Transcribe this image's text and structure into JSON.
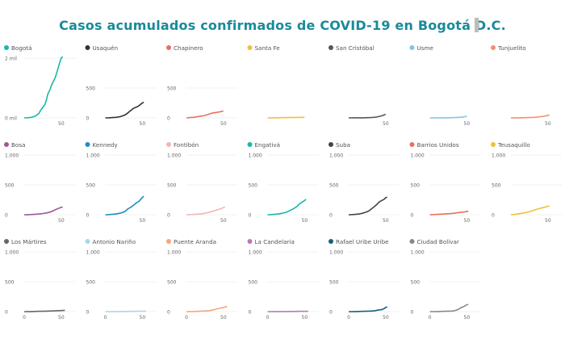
{
  "title": "Casos acumulados confirmados de COVID-19 en Bogotá D.C.",
  "chart_data": [
    {
      "type": "line",
      "title": "Bogotá",
      "color": "#17b8a6",
      "ylim": [
        0,
        2000
      ],
      "yticks": [
        0,
        2000
      ],
      "ytick_labels": [
        "0 mil",
        "2 mil"
      ],
      "xticks": [
        50
      ],
      "xtick_labels": [
        "50"
      ],
      "x": [
        0,
        5,
        10,
        15,
        20,
        22,
        25,
        28,
        30,
        32,
        35,
        37,
        40,
        42,
        45,
        48,
        50,
        52
      ],
      "values": [
        0,
        5,
        20,
        60,
        150,
        250,
        350,
        450,
        600,
        800,
        950,
        1100,
        1250,
        1350,
        1600,
        1850,
        2000,
        2050
      ]
    },
    {
      "type": "line",
      "title": "Usaquén",
      "color": "#333333",
      "ylim": [
        0,
        1000
      ],
      "yticks": [
        0,
        500
      ],
      "ytick_labels": [
        "0",
        "500"
      ],
      "xticks": [
        50
      ],
      "xtick_labels": [
        "50"
      ],
      "x": [
        0,
        5,
        10,
        15,
        20,
        25,
        28,
        30,
        32,
        35,
        38,
        40,
        42,
        45,
        48,
        50,
        52
      ],
      "values": [
        0,
        2,
        5,
        10,
        20,
        40,
        60,
        80,
        100,
        130,
        160,
        170,
        180,
        200,
        230,
        250,
        260
      ]
    },
    {
      "type": "line",
      "title": "Chapinero",
      "color": "#e8705e",
      "ylim": [
        0,
        1000
      ],
      "yticks": [
        0,
        500
      ],
      "ytick_labels": [
        "0",
        "500"
      ],
      "xticks": [
        50
      ],
      "xtick_labels": [
        "50"
      ],
      "x": [
        0,
        5,
        10,
        15,
        20,
        25,
        30,
        32,
        35,
        38,
        40,
        42,
        45,
        48,
        50
      ],
      "values": [
        0,
        5,
        10,
        20,
        30,
        40,
        60,
        70,
        80,
        85,
        90,
        95,
        100,
        110,
        115
      ]
    },
    {
      "type": "line",
      "title": "Santa Fe",
      "color": "#f2c037",
      "ylim": [
        0,
        1000
      ],
      "yticks": [],
      "ytick_labels": [],
      "xticks": [],
      "xtick_labels": [],
      "x": [
        0,
        10,
        20,
        30,
        40,
        50
      ],
      "values": [
        0,
        2,
        4,
        6,
        8,
        10
      ]
    },
    {
      "type": "line",
      "title": "San Cristóbal",
      "color": "#555555",
      "ylim": [
        0,
        1000
      ],
      "yticks": [],
      "ytick_labels": [],
      "xticks": [
        50
      ],
      "xtick_labels": [
        "50"
      ],
      "x": [
        0,
        10,
        20,
        30,
        35,
        40,
        45,
        48,
        50
      ],
      "values": [
        0,
        1,
        2,
        5,
        10,
        20,
        35,
        50,
        60
      ]
    },
    {
      "type": "line",
      "title": "Usme",
      "color": "#7ec8e3",
      "ylim": [
        0,
        1000
      ],
      "yticks": [],
      "ytick_labels": [],
      "xticks": [
        50
      ],
      "xtick_labels": [
        "50"
      ],
      "x": [
        0,
        10,
        20,
        30,
        35,
        40,
        45,
        48,
        50
      ],
      "values": [
        0,
        1,
        2,
        4,
        6,
        10,
        15,
        22,
        30
      ]
    },
    {
      "type": "line",
      "title": "Tunjuelito",
      "color": "#f4906a",
      "ylim": [
        0,
        1000
      ],
      "yticks": [],
      "ytick_labels": [],
      "xticks": [
        50
      ],
      "xtick_labels": [
        "50"
      ],
      "x": [
        0,
        10,
        20,
        30,
        35,
        40,
        45,
        48,
        50,
        52
      ],
      "values": [
        0,
        2,
        4,
        8,
        12,
        20,
        28,
        35,
        42,
        48
      ]
    },
    {
      "type": "line",
      "title": "Bosa",
      "color": "#a0579a",
      "ylim": [
        0,
        1000
      ],
      "yticks": [
        0,
        500,
        1000
      ],
      "ytick_labels": [
        "0",
        "500",
        "1.000"
      ],
      "xticks": [
        50
      ],
      "xtick_labels": [
        "50"
      ],
      "x": [
        0,
        5,
        10,
        15,
        20,
        25,
        30,
        35,
        40,
        42,
        45,
        48,
        50,
        52
      ],
      "values": [
        0,
        2,
        4,
        8,
        12,
        20,
        30,
        45,
        70,
        85,
        100,
        115,
        125,
        130
      ]
    },
    {
      "type": "line",
      "title": "Kennedy",
      "color": "#1f8dc1",
      "ylim": [
        0,
        1000
      ],
      "yticks": [
        0,
        500,
        1000
      ],
      "ytick_labels": [
        "0",
        "500",
        "1.000"
      ],
      "xticks": [
        50
      ],
      "xtick_labels": [
        "50"
      ],
      "x": [
        0,
        5,
        10,
        15,
        20,
        25,
        28,
        30,
        32,
        35,
        38,
        40,
        42,
        45,
        48,
        50,
        52
      ],
      "values": [
        0,
        3,
        8,
        15,
        25,
        45,
        70,
        95,
        110,
        130,
        160,
        180,
        200,
        220,
        260,
        290,
        310
      ]
    },
    {
      "type": "line",
      "title": "Fontibón",
      "color": "#f2b5b5",
      "ylim": [
        0,
        1000
      ],
      "yticks": [
        0,
        500,
        1000
      ],
      "ytick_labels": [
        "0",
        "500",
        "1.000"
      ],
      "xticks": [
        50
      ],
      "xtick_labels": [
        "50"
      ],
      "x": [
        0,
        10,
        20,
        25,
        30,
        35,
        40,
        45,
        48,
        50,
        52
      ],
      "values": [
        0,
        5,
        15,
        25,
        40,
        55,
        75,
        95,
        110,
        120,
        130
      ]
    },
    {
      "type": "line",
      "title": "Engativá",
      "color": "#17b8a6",
      "ylim": [
        0,
        1000
      ],
      "yticks": [
        0,
        500,
        1000
      ],
      "ytick_labels": [
        "0",
        "500",
        "1.000"
      ],
      "xticks": [
        50
      ],
      "xtick_labels": [
        "50"
      ],
      "x": [
        0,
        5,
        10,
        15,
        20,
        25,
        30,
        35,
        40,
        42,
        45,
        48,
        50,
        52
      ],
      "values": [
        0,
        3,
        8,
        15,
        25,
        40,
        70,
        100,
        140,
        170,
        200,
        220,
        240,
        255
      ]
    },
    {
      "type": "line",
      "title": "Suba",
      "color": "#444444",
      "ylim": [
        0,
        1000
      ],
      "yticks": [
        0,
        500,
        1000
      ],
      "ytick_labels": [
        "0",
        "500",
        "1.000"
      ],
      "xticks": [
        50
      ],
      "xtick_labels": [
        "50"
      ],
      "x": [
        0,
        5,
        10,
        15,
        20,
        25,
        28,
        30,
        32,
        35,
        38,
        40,
        42,
        45,
        48,
        50,
        52
      ],
      "values": [
        0,
        3,
        8,
        15,
        30,
        50,
        70,
        90,
        110,
        140,
        170,
        200,
        220,
        240,
        260,
        285,
        295
      ]
    },
    {
      "type": "line",
      "title": "Barrios Unidos",
      "color": "#e8705e",
      "ylim": [
        0,
        1000
      ],
      "yticks": [
        0,
        500,
        1000
      ],
      "ytick_labels": [
        "0",
        "500",
        "1.000"
      ],
      "xticks": [
        50
      ],
      "xtick_labels": [
        "50"
      ],
      "x": [
        0,
        10,
        20,
        30,
        35,
        40,
        45,
        48,
        50,
        52
      ],
      "values": [
        0,
        5,
        12,
        22,
        30,
        38,
        45,
        50,
        55,
        60
      ]
    },
    {
      "type": "line",
      "title": "Teusaquillo",
      "color": "#f2c037",
      "ylim": [
        0,
        1000
      ],
      "yticks": [
        0,
        500,
        1000
      ],
      "ytick_labels": [
        "0",
        "500",
        "1.000"
      ],
      "xticks": [
        50
      ],
      "xtick_labels": [
        "50"
      ],
      "x": [
        0,
        5,
        10,
        15,
        20,
        25,
        30,
        35,
        40,
        45,
        48,
        50,
        52
      ],
      "values": [
        0,
        5,
        15,
        25,
        35,
        50,
        70,
        90,
        110,
        125,
        135,
        140,
        145
      ]
    },
    {
      "type": "line",
      "title": "Los Mártires",
      "color": "#666666",
      "ylim": [
        0,
        1000
      ],
      "yticks": [
        0,
        500,
        1000
      ],
      "ytick_labels": [
        "0",
        "500",
        "1.000"
      ],
      "xticks": [
        0,
        50
      ],
      "xtick_labels": [
        "0",
        "50"
      ],
      "x": [
        0,
        10,
        20,
        30,
        40,
        50,
        55
      ],
      "values": [
        0,
        2,
        5,
        8,
        12,
        18,
        22
      ]
    },
    {
      "type": "line",
      "title": "Antonio Nariño",
      "color": "#a8d8ea",
      "ylim": [
        0,
        1000
      ],
      "yticks": [
        0,
        500,
        1000
      ],
      "ytick_labels": [
        "0",
        "500",
        "1.000"
      ],
      "xticks": [
        0,
        50
      ],
      "xtick_labels": [
        "0",
        "50"
      ],
      "x": [
        0,
        10,
        20,
        30,
        40,
        50,
        55
      ],
      "values": [
        0,
        1,
        2,
        3,
        5,
        8,
        10
      ]
    },
    {
      "type": "line",
      "title": "Puente Aranda",
      "color": "#f4a57c",
      "ylim": [
        0,
        1000
      ],
      "yticks": [
        0,
        500,
        1000
      ],
      "ytick_labels": [
        "0",
        "500",
        "1.000"
      ],
      "xticks": [
        0,
        50
      ],
      "xtick_labels": [
        "0",
        "50"
      ],
      "x": [
        0,
        10,
        20,
        30,
        35,
        40,
        45,
        50,
        55
      ],
      "values": [
        0,
        3,
        8,
        15,
        25,
        40,
        55,
        70,
        85
      ]
    },
    {
      "type": "line",
      "title": "La Candelaria",
      "color": "#b77ab0",
      "ylim": [
        0,
        1000
      ],
      "yticks": [
        0,
        500,
        1000
      ],
      "ytick_labels": [
        "0",
        "500",
        "1.000"
      ],
      "xticks": [
        0,
        50
      ],
      "xtick_labels": [
        "0",
        "50"
      ],
      "x": [
        0,
        10,
        20,
        30,
        40,
        50,
        55
      ],
      "values": [
        0,
        1,
        2,
        3,
        4,
        5,
        6
      ]
    },
    {
      "type": "line",
      "title": "Rafael Uribe Uribe",
      "color": "#1a5e7a",
      "ylim": [
        0,
        1000
      ],
      "yticks": [
        0,
        500,
        1000
      ],
      "ytick_labels": [
        "0",
        "500",
        "1.000"
      ],
      "xticks": [
        0,
        50
      ],
      "xtick_labels": [
        "0",
        "50"
      ],
      "x": [
        0,
        10,
        20,
        30,
        35,
        40,
        45,
        48,
        50,
        52
      ],
      "values": [
        0,
        2,
        5,
        10,
        15,
        25,
        35,
        50,
        70,
        80
      ]
    },
    {
      "type": "line",
      "title": "Ciudad Bolívar",
      "color": "#888888",
      "ylim": [
        0,
        1000
      ],
      "yticks": [
        0,
        500,
        1000
      ],
      "ytick_labels": [
        "0",
        "500",
        "1.000"
      ],
      "xticks": [
        0,
        50
      ],
      "xtick_labels": [
        "0",
        "50"
      ],
      "x": [
        0,
        10,
        20,
        30,
        35,
        38,
        40,
        42,
        45,
        48,
        50,
        52
      ],
      "values": [
        0,
        2,
        5,
        10,
        20,
        35,
        50,
        65,
        80,
        100,
        115,
        120
      ]
    }
  ]
}
